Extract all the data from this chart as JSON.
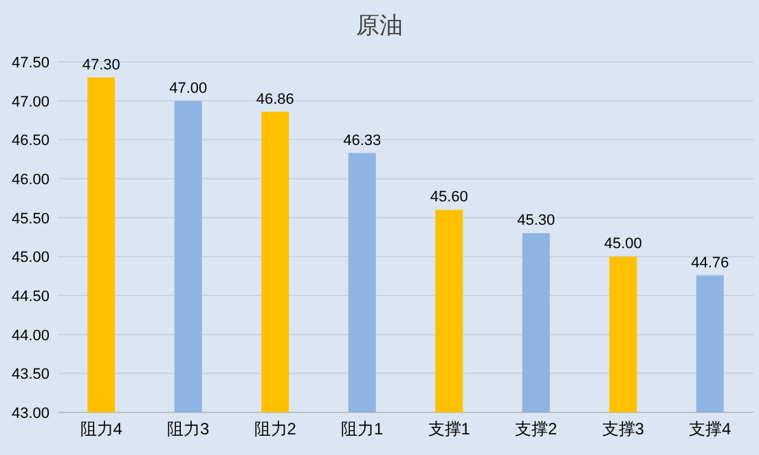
{
  "chart_data": {
    "type": "bar",
    "title": "原油",
    "categories": [
      "阻力4",
      "阻力3",
      "阻力2",
      "阻力1",
      "支撑1",
      "支撑2",
      "支撑3",
      "支撑4"
    ],
    "values": [
      47.3,
      47.0,
      46.86,
      46.33,
      45.6,
      45.3,
      45.0,
      44.76
    ],
    "value_labels": [
      "47.30",
      "47.00",
      "46.86",
      "46.33",
      "45.60",
      "45.30",
      "45.00",
      "44.76"
    ],
    "colors": [
      "#ffc000",
      "#8eb4e3",
      "#ffc000",
      "#8eb4e3",
      "#ffc000",
      "#8eb4e3",
      "#ffc000",
      "#8eb4e3"
    ],
    "ylim": [
      43,
      47.5
    ],
    "yticks": [
      {
        "value": 43,
        "label": "43.00"
      },
      {
        "value": 43.5,
        "label": "43.50"
      },
      {
        "value": 44,
        "label": "44.00"
      },
      {
        "value": 44.5,
        "label": "44.50"
      },
      {
        "value": 45,
        "label": "45.00"
      },
      {
        "value": 45.5,
        "label": "45.50"
      },
      {
        "value": 46,
        "label": "46.00"
      },
      {
        "value": 46.5,
        "label": "46.50"
      },
      {
        "value": 47,
        "label": "47.00"
      },
      {
        "value": 47.5,
        "label": "47.50"
      }
    ],
    "grid": "y"
  }
}
